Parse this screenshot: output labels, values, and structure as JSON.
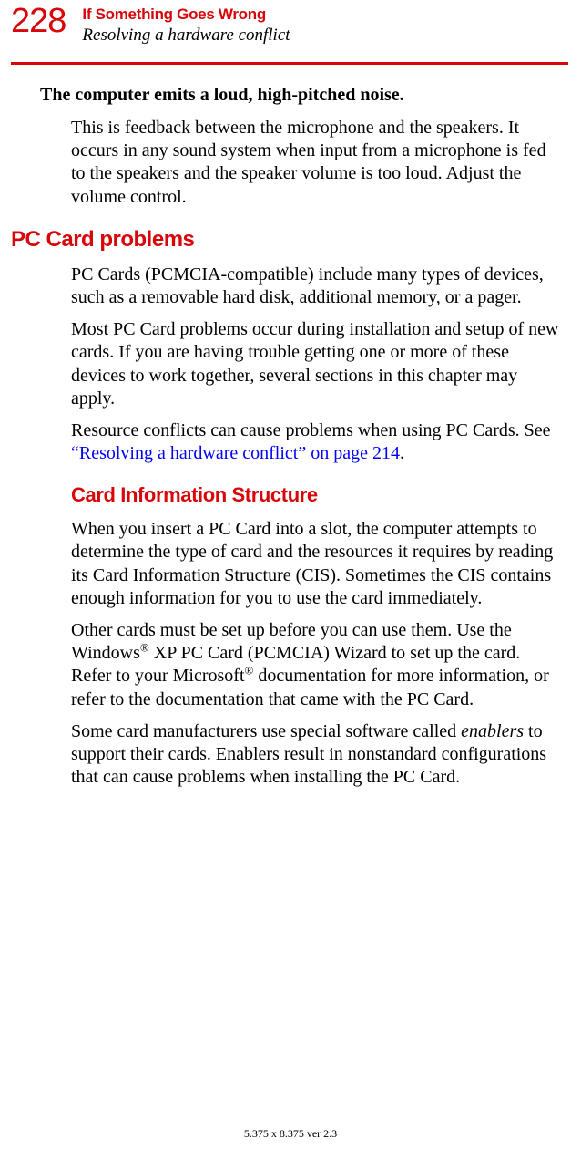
{
  "page_number": "228",
  "header": {
    "chapter": "If Something Goes Wrong",
    "section": "Resolving a hardware conflict"
  },
  "colors": {
    "accent_red": "#d8060b",
    "link_blue": "#0000ff",
    "text_black": "#000000",
    "background": "#ffffff"
  },
  "typography": {
    "body_font": "Times New Roman",
    "heading_font": "Arial Narrow",
    "body_size_pt": 15,
    "page_number_size_pt": 29
  },
  "symptom_heading": "The computer emits a loud, high-pitched noise.",
  "paragraphs": {
    "feedback": "This is feedback between the microphone and the speakers. It occurs in any sound system when input from a microphone is fed to the speakers and the speaker volume is too loud. Adjust the volume control.",
    "pc_heading": "PC Card problems",
    "pc1": "PC Cards (PCMCIA-compatible) include many types of devices, such as a removable hard disk, additional memory, or a pager.",
    "pc2": "Most PC Card problems occur during installation and setup of new cards. If you are having trouble getting one or more of these devices to work together, several sections in this chapter may apply.",
    "pc3_pre": "Resource conflicts can cause problems when using PC Cards. See ",
    "pc3_link": "“Resolving a hardware conflict” on page 214",
    "pc3_post": ".",
    "cis_heading": "Card Information Structure",
    "cis1": "When you insert a PC Card into a slot, the computer attempts to determine the type of card and the resources it requires by reading its Card Information Structure (CIS). Sometimes the CIS contains enough information for you to use the card immediately.",
    "cis2_a": "Other cards must be set up before you can use them. Use the Windows",
    "cis2_b": " XP PC Card (PCMCIA) Wizard to set up the card. Refer to your Microsoft",
    "cis2_c": " documentation for more information, or refer to the documentation that came with the PC Card.",
    "cis3_a": "Some card manufacturers use special software called ",
    "cis3_em": "enablers",
    "cis3_b": " to support their cards. Enablers result in nonstandard configurations that can cause problems when installing the PC Card."
  },
  "footer": "5.375 x 8.375 ver 2.3"
}
